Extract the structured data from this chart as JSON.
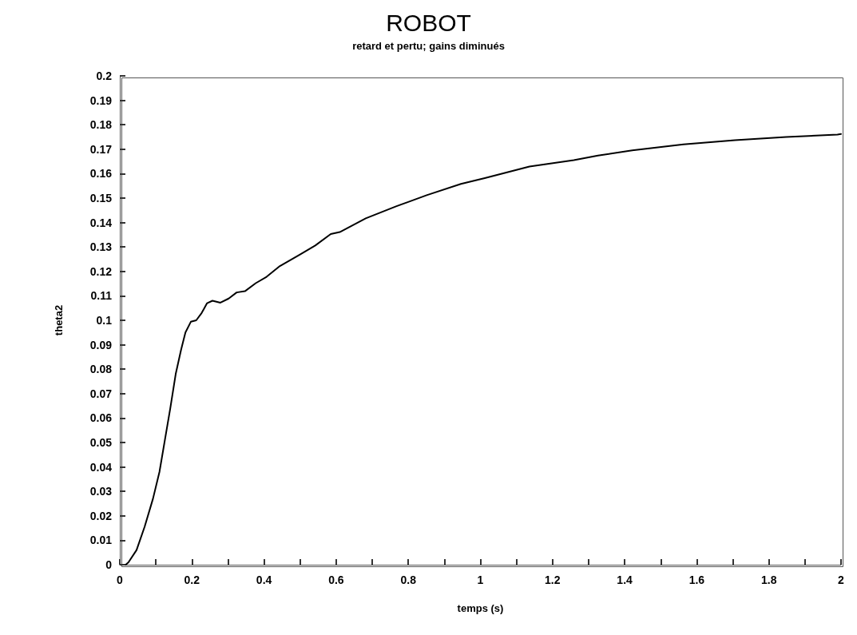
{
  "chart_data": {
    "type": "line",
    "title": "ROBOT",
    "subtitle": "retard et pertu; gains diminués",
    "xlabel": "temps (s)",
    "ylabel": "theta2",
    "x": [
      0.0165,
      0.024,
      0.0465,
      0.069,
      0.092,
      0.11,
      0.125,
      0.14,
      0.155,
      0.17,
      0.182,
      0.197,
      0.212,
      0.227,
      0.242,
      0.257,
      0.279,
      0.302,
      0.324,
      0.347,
      0.377,
      0.407,
      0.444,
      0.497,
      0.542,
      0.585,
      0.61,
      0.682,
      0.766,
      0.851,
      0.946,
      1.012,
      1.136,
      1.259,
      1.326,
      1.421,
      1.563,
      1.706,
      1.848,
      1.99,
      2
    ],
    "series": [
      {
        "color": "#000000",
        "values": [
          0,
          0.001,
          0.006,
          0.0156,
          0.027,
          0.038,
          0.051,
          0.064,
          0.078,
          0.088,
          0.095,
          0.0994,
          0.1,
          0.103,
          0.107,
          0.108,
          0.1072,
          0.1089,
          0.1114,
          0.1119,
          0.1152,
          0.1178,
          0.1222,
          0.1267,
          0.1306,
          0.1353,
          0.1361,
          0.1417,
          0.1466,
          0.1512,
          0.1558,
          0.1582,
          0.1629,
          0.1655,
          0.1674,
          0.1695,
          0.172,
          0.1737,
          0.175,
          0.176,
          0.1762
        ]
      }
    ],
    "xlim": [
      0,
      2
    ],
    "xticks": [
      0,
      {
        "value": 0.1,
        "label": null
      },
      0.2,
      {
        "value": 0.3,
        "label": null
      },
      0.4,
      {
        "value": 0.5,
        "label": null
      },
      0.6,
      {
        "value": 0.7,
        "label": null
      },
      0.8,
      {
        "value": 0.9,
        "label": null
      },
      1,
      {
        "value": 1.1,
        "label": null
      },
      1.2,
      {
        "value": 1.3,
        "label": null
      },
      1.4,
      {
        "value": 1.5,
        "label": null
      },
      1.6,
      {
        "value": 1.7,
        "label": null
      },
      1.8,
      {
        "value": 1.9,
        "label": null
      },
      2
    ],
    "ylim": [
      0,
      0.2
    ],
    "yticks": [
      0,
      0.01,
      0.02,
      0.03,
      0.04,
      0.05,
      0.06,
      0.07,
      0.08,
      0.09,
      0.1,
      0.11,
      0.12,
      0.13,
      0.14,
      0.15,
      0.16,
      0.17,
      0.18,
      0.19,
      0.2
    ],
    "grid": false,
    "marker": "none",
    "line_style": "solid"
  }
}
